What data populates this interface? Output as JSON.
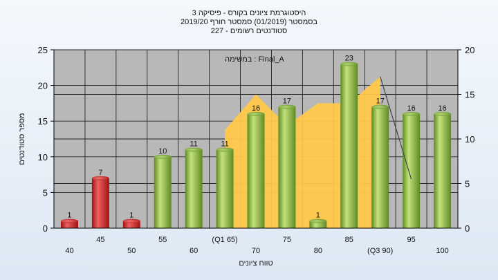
{
  "chart_data": {
    "type": "bar",
    "title_lines": [
      "היסטוגרמת ציונים בקורס - פיסיקה 3",
      "בסמסטר  (01/2019)  סמסטר חורף 2019/20",
      "סטודנטים רשומים - 227"
    ],
    "annotation": "במשימה : Final_A",
    "xlabel": "טווח ציונים",
    "ylabel": "מספר סטודנטים",
    "categories": [
      "40",
      "45",
      "50",
      "55",
      "60",
      "(Q1 65)",
      "70",
      "75",
      "80",
      "85",
      "(Q3 90)",
      "95",
      "100"
    ],
    "values": [
      1,
      7,
      1,
      10,
      11,
      11,
      16,
      17,
      1,
      23,
      17,
      16,
      16
    ],
    "bar_colors": [
      "#d42d2d",
      "#d42d2d",
      "#d42d2d",
      "#8ab842",
      "#8ab842",
      "#8ab842",
      "#8ab842",
      "#8ab842",
      "#8ab842",
      "#8ab842",
      "#8ab842",
      "#8ab842",
      "#8ab842"
    ],
    "ylim": [
      0,
      25
    ],
    "yticks": [
      0,
      5,
      10,
      15,
      20,
      25
    ],
    "y2lim": [
      0,
      20
    ],
    "y2ticks": [
      0,
      5,
      10,
      15,
      20
    ],
    "area_values": [
      null,
      null,
      null,
      null,
      null,
      11,
      15,
      11.5,
      14,
      14,
      17,
      null,
      null
    ],
    "area_color": "#ffc84a",
    "line_values": [
      null,
      null,
      null,
      null,
      null,
      null,
      null,
      null,
      null,
      null,
      17,
      5.5,
      null
    ],
    "plot_background": "#b8b8b8",
    "grid": true
  }
}
